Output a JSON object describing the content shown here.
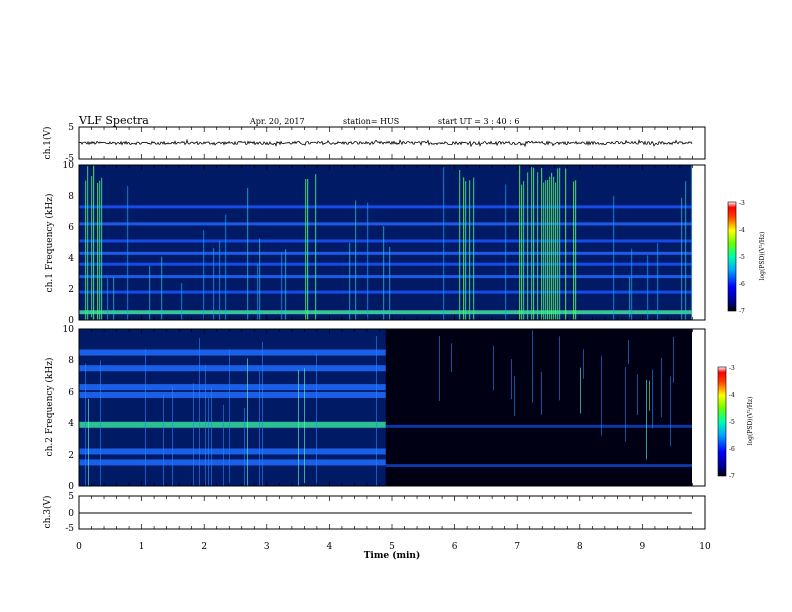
{
  "header": {
    "title": "VLF Spectra",
    "date": "Apr. 20, 2017",
    "station": "station= HUS",
    "start_ut": "start  UT =   3 : 40 : 6"
  },
  "colors": {
    "waveform": "#000000",
    "axis": "#000000",
    "spectrogram_background": "#001a66"
  },
  "chart_data": [
    {
      "type": "line",
      "name": "ch1-waveform",
      "ylabel": "ch.1(V)",
      "ylim": [
        -5,
        5
      ],
      "yticks": [
        "5",
        "-5"
      ],
      "xlim": [
        0,
        10
      ],
      "baseline": 0,
      "amplitude": 0.5
    },
    {
      "type": "heatmap",
      "name": "ch1-spectrogram",
      "ylabel": "ch.1 Frequency (kHz)",
      "ylim": [
        0,
        10
      ],
      "yticks": [
        "0",
        "2",
        "4",
        "6",
        "8",
        "10"
      ],
      "xlim": [
        0,
        10
      ],
      "colorbar_label": "log(PSD)(V²/Hz)",
      "colorbar_range": [
        -7,
        -3
      ],
      "colorbar_ticks": [
        "-3",
        "-4",
        "-5",
        "-6",
        "-7"
      ],
      "active_intervals_min": [
        [
          0,
          0.4
        ],
        [
          3.6,
          3.8
        ],
        [
          6.0,
          6.3
        ],
        [
          7.0,
          8.0
        ]
      ],
      "horizontal_bands_khz": [
        0.5,
        1.8,
        2.8,
        3.6,
        4.3,
        5.1,
        6.2,
        7.3
      ]
    },
    {
      "type": "heatmap",
      "name": "ch2-spectrogram",
      "ylabel": "ch.2 Frequency (kHz)",
      "ylim": [
        0,
        10
      ],
      "yticks": [
        "0",
        "2",
        "4",
        "6",
        "8",
        "10"
      ],
      "xlim": [
        0,
        10
      ],
      "colorbar_label": "log(PSD)(V²/Hz)",
      "colorbar_range": [
        -7,
        -3
      ],
      "colorbar_ticks": [
        "-3",
        "-4",
        "-5",
        "-6",
        "-7"
      ],
      "transition_min": 4.9,
      "bands_before_transition_khz": [
        1.5,
        2.2,
        3.9,
        5.8,
        6.3,
        7.5,
        8.5
      ],
      "bands_after_transition_khz": [
        1.3,
        3.8
      ]
    },
    {
      "type": "line",
      "name": "ch3-waveform",
      "ylabel": "ch.3(V)",
      "ylim": [
        -5,
        5
      ],
      "yticks": [
        "5",
        "0",
        "-5"
      ],
      "xlim": [
        0,
        10
      ],
      "baseline": 0,
      "amplitude": 0
    }
  ],
  "xaxis": {
    "label": "Time  (min)",
    "ticks": [
      "0",
      "1",
      "2",
      "3",
      "4",
      "5",
      "6",
      "7",
      "8",
      "9",
      "10"
    ]
  }
}
